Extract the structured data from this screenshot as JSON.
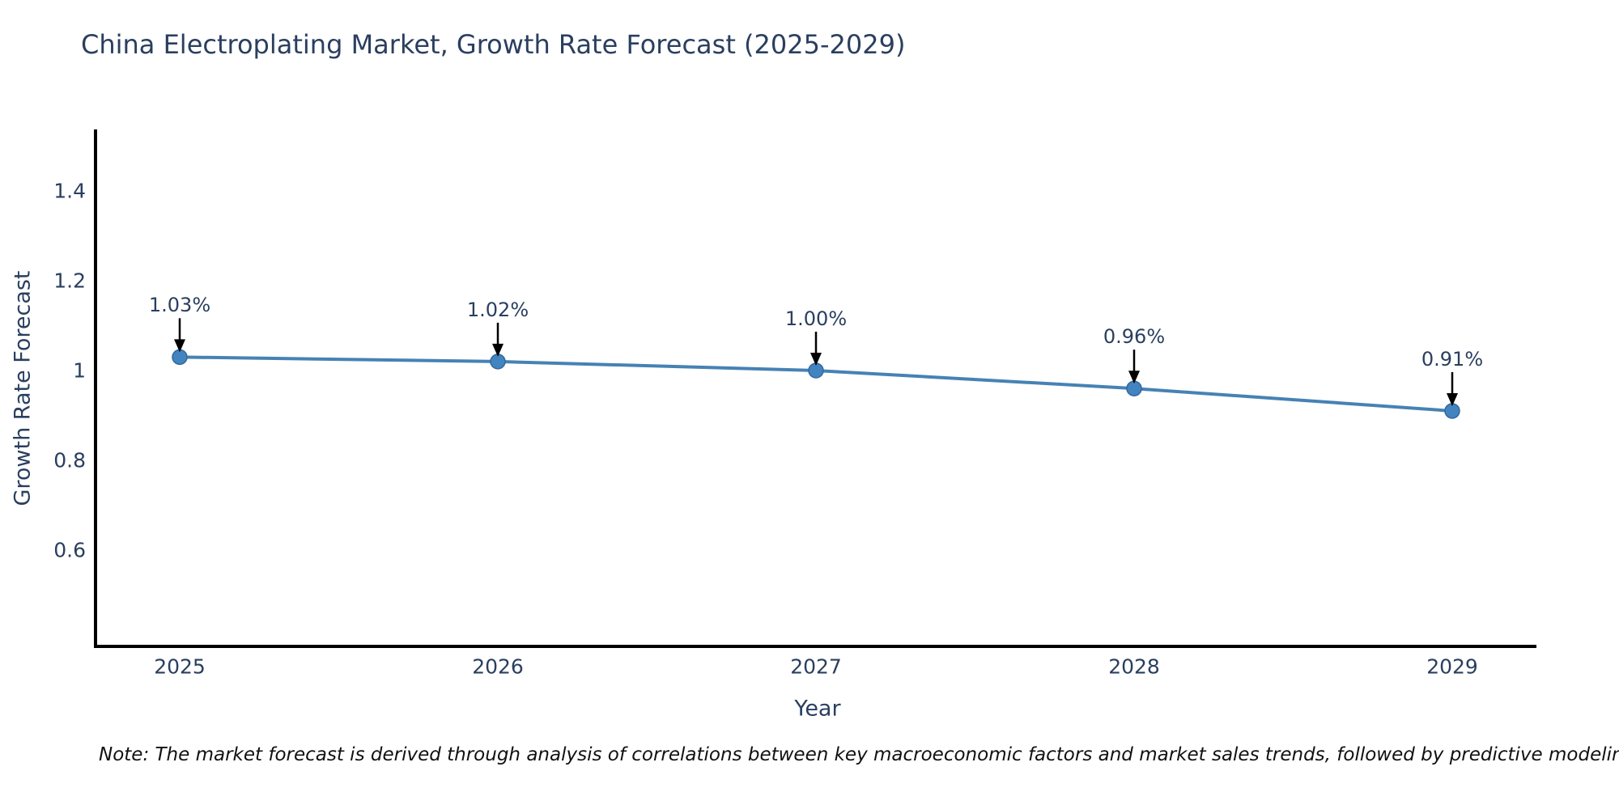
{
  "title": "China Electroplating Market, Growth Rate Forecast (2025-2029)",
  "note": "Note: The market forecast is derived through analysis of correlations between key macroeconomic factors and market sales trends, followed by predictive modeling to project future sales",
  "chart_data": {
    "type": "line",
    "title": "China Electroplating Market, Growth Rate Forecast (2025-2029)",
    "xlabel": "Year",
    "ylabel": "Growth Rate Forecast",
    "x": [
      2025,
      2026,
      2027,
      2028,
      2029
    ],
    "series": [
      {
        "name": "Growth Rate Forecast",
        "values": [
          1.03,
          1.02,
          1.0,
          0.96,
          0.91
        ]
      }
    ],
    "point_labels": [
      "1.03%",
      "1.02%",
      "1.00%",
      "0.96%",
      "0.91%"
    ],
    "yticks": [
      0.6,
      0.8,
      1,
      1.2,
      1.4
    ],
    "ylim": [
      0.38,
      1.54
    ],
    "grid": false,
    "legend_position": "none",
    "colors": {
      "line": "#4682b4",
      "marker_fill": "#4184c0",
      "marker_edge": "#34689c",
      "axis_line": "#000000",
      "text": "#2a3f5f",
      "annotation_arrow": "#000000",
      "note_text": "#111111",
      "background": "#ffffff"
    }
  }
}
